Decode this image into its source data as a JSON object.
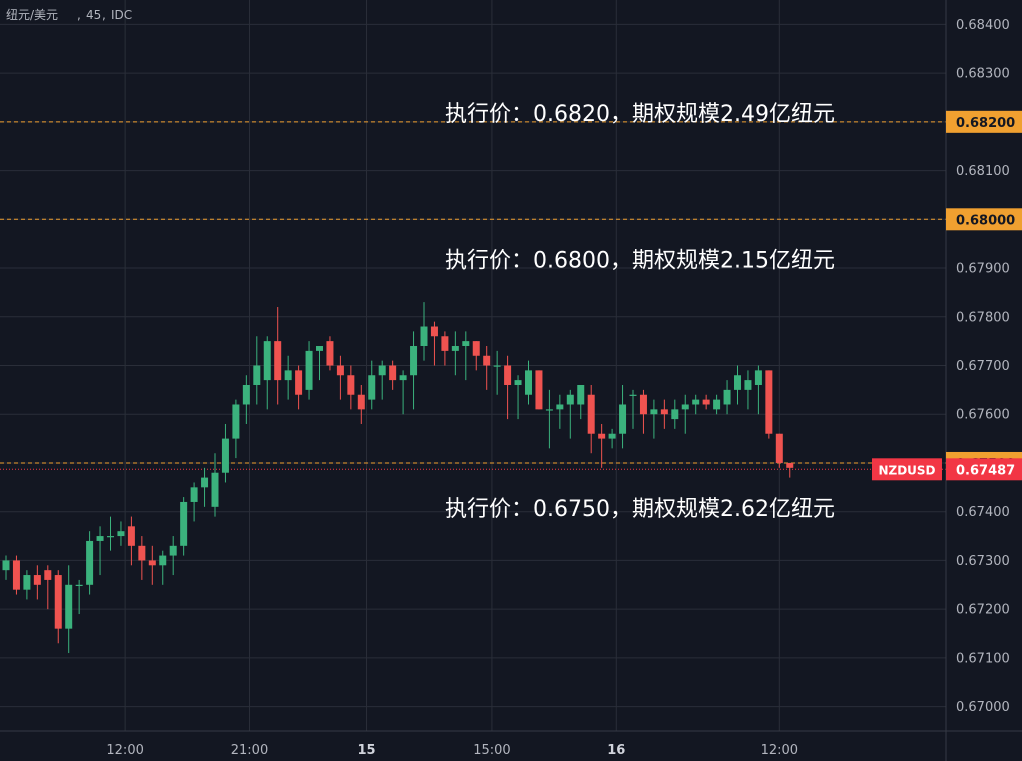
{
  "header": {
    "symbol": "纽元/美元",
    "interval": "45",
    "source": "IDC"
  },
  "chart_data": {
    "type": "candlestick",
    "ylim": [
      0.6695,
      0.6845
    ],
    "y_ticks": [
      "0.67000",
      "0.67100",
      "0.67200",
      "0.67300",
      "0.67400",
      "0.67500",
      "0.67600",
      "0.67700",
      "0.67800",
      "0.67900",
      "0.68000",
      "0.68100",
      "0.68200",
      "0.68300",
      "0.68400"
    ],
    "x_ticks": [
      {
        "label": "12:00",
        "bar": 11.4,
        "bold": false
      },
      {
        "label": "21:00",
        "bar": 23.3,
        "bold": false
      },
      {
        "label": "15",
        "bar": 34.5,
        "bold": true
      },
      {
        "label": "15:00",
        "bar": 46.5,
        "bold": false
      },
      {
        "label": "16",
        "bar": 58.4,
        "bold": true
      },
      {
        "label": "12:00",
        "bar": 74.0,
        "bold": false
      }
    ],
    "candles": [
      [
        0.6728,
        0.6731,
        0.6726,
        0.673
      ],
      [
        0.673,
        0.6731,
        0.6723,
        0.6724
      ],
      [
        0.6724,
        0.6728,
        0.6722,
        0.6727
      ],
      [
        0.6727,
        0.6729,
        0.6722,
        0.6725
      ],
      [
        0.6728,
        0.6729,
        0.672,
        0.6726
      ],
      [
        0.6727,
        0.6728,
        0.6713,
        0.6716
      ],
      [
        0.6716,
        0.6729,
        0.6711,
        0.6725
      ],
      [
        0.6725,
        0.6726,
        0.6719,
        0.6725
      ],
      [
        0.6725,
        0.6736,
        0.6723,
        0.6734
      ],
      [
        0.6734,
        0.6737,
        0.6727,
        0.6735
      ],
      [
        0.6735,
        0.6739,
        0.6732,
        0.6735
      ],
      [
        0.6735,
        0.6738,
        0.6733,
        0.6736
      ],
      [
        0.6737,
        0.6739,
        0.6729,
        0.6733
      ],
      [
        0.6733,
        0.6735,
        0.6726,
        0.673
      ],
      [
        0.673,
        0.6733,
        0.6725,
        0.6729
      ],
      [
        0.6729,
        0.6732,
        0.6725,
        0.6731
      ],
      [
        0.6731,
        0.6735,
        0.6727,
        0.6733
      ],
      [
        0.6733,
        0.6743,
        0.6731,
        0.6742
      ],
      [
        0.6742,
        0.6746,
        0.6738,
        0.6745
      ],
      [
        0.6745,
        0.6749,
        0.6741,
        0.6747
      ],
      [
        0.6741,
        0.6752,
        0.6739,
        0.6748
      ],
      [
        0.6748,
        0.6758,
        0.6746,
        0.6755
      ],
      [
        0.6755,
        0.6763,
        0.6751,
        0.6762
      ],
      [
        0.6762,
        0.6768,
        0.6758,
        0.6766
      ],
      [
        0.6766,
        0.6776,
        0.6762,
        0.677
      ],
      [
        0.6767,
        0.6776,
        0.6761,
        0.6775
      ],
      [
        0.6775,
        0.6782,
        0.6762,
        0.6767
      ],
      [
        0.6767,
        0.6772,
        0.6763,
        0.6769
      ],
      [
        0.6769,
        0.677,
        0.6761,
        0.6764
      ],
      [
        0.6765,
        0.6775,
        0.6763,
        0.6773
      ],
      [
        0.6773,
        0.6774,
        0.6767,
        0.6774
      ],
      [
        0.6775,
        0.6776,
        0.6769,
        0.677
      ],
      [
        0.677,
        0.6772,
        0.6763,
        0.6768
      ],
      [
        0.6768,
        0.677,
        0.6761,
        0.6764
      ],
      [
        0.6764,
        0.6766,
        0.6758,
        0.6761
      ],
      [
        0.6763,
        0.6771,
        0.6761,
        0.6768
      ],
      [
        0.6768,
        0.6771,
        0.6763,
        0.677
      ],
      [
        0.677,
        0.6771,
        0.6765,
        0.6767
      ],
      [
        0.6767,
        0.6769,
        0.676,
        0.6768
      ],
      [
        0.6768,
        0.6777,
        0.6761,
        0.6774
      ],
      [
        0.6774,
        0.6783,
        0.6771,
        0.6778
      ],
      [
        0.6778,
        0.6779,
        0.677,
        0.6776
      ],
      [
        0.6776,
        0.6777,
        0.677,
        0.6773
      ],
      [
        0.6773,
        0.6777,
        0.6768,
        0.6774
      ],
      [
        0.6774,
        0.6777,
        0.6767,
        0.6775
      ],
      [
        0.6775,
        0.6775,
        0.6769,
        0.6772
      ],
      [
        0.6772,
        0.6774,
        0.6765,
        0.677
      ],
      [
        0.677,
        0.6773,
        0.6764,
        0.677
      ],
      [
        0.677,
        0.6772,
        0.6759,
        0.6766
      ],
      [
        0.6766,
        0.6768,
        0.6759,
        0.6767
      ],
      [
        0.6764,
        0.6771,
        0.6762,
        0.6769
      ],
      [
        0.6769,
        0.6769,
        0.6761,
        0.6761
      ],
      [
        0.6761,
        0.6765,
        0.6753,
        0.6761
      ],
      [
        0.6761,
        0.6764,
        0.6757,
        0.6762
      ],
      [
        0.6762,
        0.6765,
        0.6755,
        0.6764
      ],
      [
        0.6762,
        0.6766,
        0.6759,
        0.6766
      ],
      [
        0.6764,
        0.6766,
        0.6752,
        0.6756
      ],
      [
        0.6756,
        0.6758,
        0.6749,
        0.6755
      ],
      [
        0.6755,
        0.6757,
        0.6753,
        0.6756
      ],
      [
        0.6756,
        0.6766,
        0.6753,
        0.6762
      ],
      [
        0.6764,
        0.6765,
        0.6757,
        0.6764
      ],
      [
        0.6764,
        0.6765,
        0.6756,
        0.676
      ],
      [
        0.676,
        0.6763,
        0.6755,
        0.6761
      ],
      [
        0.6761,
        0.6763,
        0.6757,
        0.676
      ],
      [
        0.6759,
        0.6763,
        0.6757,
        0.6761
      ],
      [
        0.6761,
        0.6764,
        0.6756,
        0.6762
      ],
      [
        0.6762,
        0.6764,
        0.676,
        0.6763
      ],
      [
        0.6763,
        0.6764,
        0.6761,
        0.6762
      ],
      [
        0.6761,
        0.6764,
        0.676,
        0.6763
      ],
      [
        0.6762,
        0.6767,
        0.676,
        0.6765
      ],
      [
        0.6765,
        0.677,
        0.6762,
        0.6768
      ],
      [
        0.6765,
        0.6769,
        0.6761,
        0.6767
      ],
      [
        0.6766,
        0.677,
        0.676,
        0.6769
      ],
      [
        0.6769,
        0.6769,
        0.6755,
        0.6756
      ],
      [
        0.6756,
        0.6756,
        0.6749,
        0.675
      ],
      [
        0.675,
        0.675,
        0.6747,
        0.6749
      ]
    ],
    "price_lines": [
      {
        "value": 0.682,
        "price_label": "0.68200",
        "color": "#f0a030"
      },
      {
        "value": 0.68,
        "price_label": "0.68000",
        "color": "#f0a030"
      },
      {
        "value": 0.675,
        "price_label": "0.67500",
        "color": "#f0a030"
      }
    ],
    "current_price": {
      "value": 0.67487,
      "label": "0.67487",
      "symbol": "NZDUSD",
      "color": "#f23645"
    },
    "annotations": [
      {
        "text": "执行价：0.6820，期权规模2.49亿纽元",
        "price": 0.6822
      },
      {
        "text": "执行价：0.6800，期权规模2.15亿纽元",
        "price": 0.6792
      },
      {
        "text": "执行价：0.6750，期权规模2.62亿纽元",
        "price": 0.6741
      }
    ],
    "colors": {
      "background": "#131722",
      "grid": "#2a2e39",
      "up": "#26a69a",
      "up_body": "#3bb27d",
      "down": "#ef5350",
      "text": "#b2b5be"
    }
  }
}
